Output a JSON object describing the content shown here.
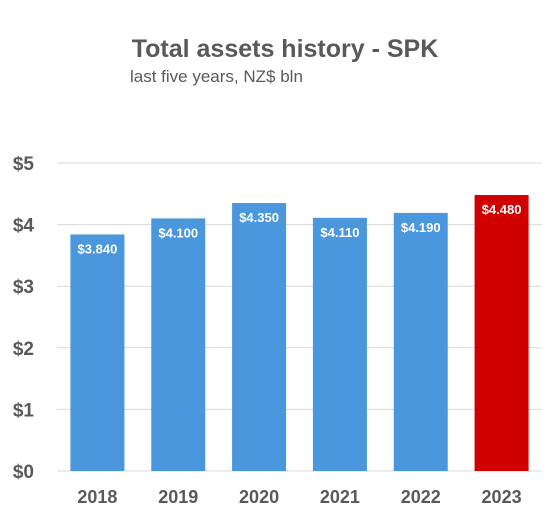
{
  "chart_data": {
    "type": "bar",
    "title": "Total assets history - SPK",
    "subtitle": "last five years, NZ$ bln",
    "categories": [
      "2018",
      "2019",
      "2020",
      "2021",
      "2022",
      "2023"
    ],
    "values": [
      3.84,
      4.1,
      4.35,
      4.11,
      4.19,
      4.48
    ],
    "data_labels": [
      "$3.840",
      "$4.100",
      "$4.350",
      "$4.110",
      "$4.190",
      "$4.480"
    ],
    "ylim": [
      0,
      5
    ],
    "yticks": [
      0,
      1,
      2,
      3,
      4,
      5
    ],
    "ytick_labels": [
      "$0",
      "$1",
      "$2",
      "$3",
      "$4",
      "$5"
    ],
    "grid": true,
    "legend": "none",
    "colors": {
      "bar": "#4a97dd",
      "highlight": "#d10000",
      "highlight_index": 5,
      "text": "#595959",
      "grid": "#d9d9d9",
      "label": "#ffffff"
    }
  }
}
